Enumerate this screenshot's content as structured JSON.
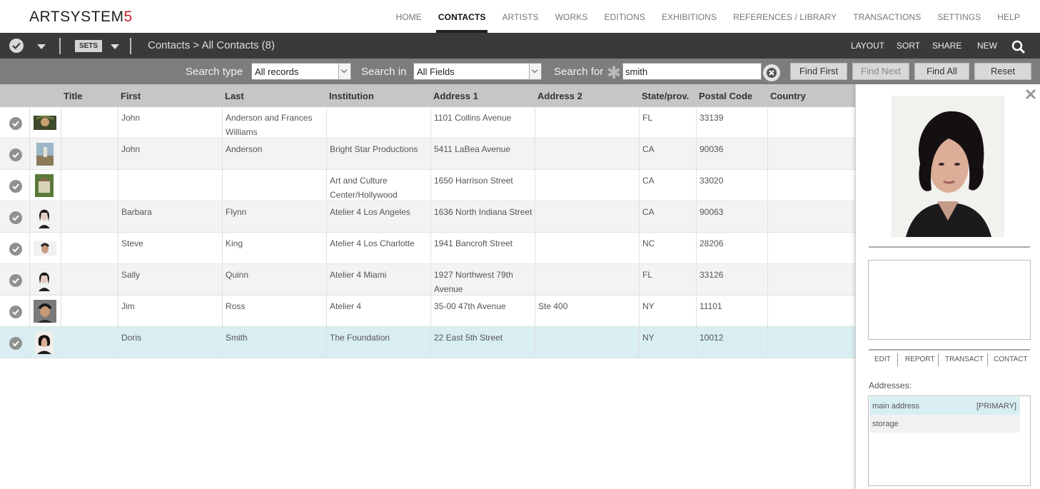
{
  "app": {
    "logo_text": "ARTSYSTEM",
    "logo_number": "5"
  },
  "nav": [
    "HOME",
    "CONTACTS",
    "ARTISTS",
    "WORKS",
    "EDITIONS",
    "EXHIBITIONS",
    "REFERENCES / LIBRARY",
    "TRANSACTIONS",
    "SETTINGS",
    "HELP"
  ],
  "nav_active": "CONTACTS",
  "toolbar": {
    "sets_label": "SETS",
    "breadcrumb": "Contacts > All Contacts (8)",
    "layout": "LAYOUT",
    "sort": "SORT",
    "share": "SHARE",
    "new": "NEW"
  },
  "search": {
    "type_label": "Search type",
    "type_value": "All records",
    "in_label": "Search in",
    "in_value": "All Fields",
    "for_label": "Search for",
    "query": "smith",
    "find_first": "Find First",
    "find_next": "Find Next",
    "find_all": "Find All",
    "reset": "Reset"
  },
  "table": {
    "columns": [
      "Title",
      "First",
      "Last",
      "Institution",
      "Address 1",
      "Address 2",
      "State/prov.",
      "Postal Code",
      "Country"
    ],
    "rows": [
      {
        "title": "",
        "first": "John",
        "last": "Anderson and Frances Williams",
        "institution": "",
        "address1": "1101 Collins Avenue",
        "address2": "",
        "state": "FL",
        "postal": "33139",
        "country": ""
      },
      {
        "title": "",
        "first": "John",
        "last": "Anderson",
        "institution": "Bright Star Productions",
        "address1": "5411 LaBea Avenue",
        "address2": "",
        "state": "CA",
        "postal": "90036",
        "country": ""
      },
      {
        "title": "",
        "first": "",
        "last": "",
        "institution": "Art and Culture Center/Hollywood",
        "address1": "1650 Harrison Street",
        "address2": "",
        "state": "CA",
        "postal": "33020",
        "country": ""
      },
      {
        "title": "",
        "first": "Barbara",
        "last": "Flynn",
        "institution": "Atelier 4 Los Angeles",
        "address1": "1636 North Indiana Street",
        "address2": "",
        "state": "CA",
        "postal": "90063",
        "country": ""
      },
      {
        "title": "",
        "first": "Steve",
        "last": "King",
        "institution": "Atelier 4 Los Charlotte",
        "address1": "1941 Bancroft Street",
        "address2": "",
        "state": "NC",
        "postal": "28206",
        "country": ""
      },
      {
        "title": "",
        "first": "Sally",
        "last": "Quinn",
        "institution": "Atelier 4 Miami",
        "address1": "1927 Northwest 79th Avenue",
        "address2": "",
        "state": "FL",
        "postal": "33126",
        "country": ""
      },
      {
        "title": "",
        "first": "Jim",
        "last": "Ross",
        "institution": "Atelier 4",
        "address1": "35-00 47th Avenue",
        "address2": "Ste 400",
        "state": "NY",
        "postal": "11101",
        "country": ""
      },
      {
        "title": "",
        "first": "Doris",
        "last": "Smith",
        "institution": "The Foundation",
        "address1": "22 East 5th Street",
        "address2": "",
        "state": "NY",
        "postal": "10012",
        "country": ""
      }
    ],
    "selected_row": 7
  },
  "panel": {
    "actions": [
      "EDIT",
      "REPORT",
      "TRANSACT",
      "CONTACT"
    ],
    "addresses_label": "Addresses:",
    "addresses": [
      {
        "name": "main address",
        "tag": "[PRIMARY]"
      },
      {
        "name": "storage",
        "tag": ""
      }
    ]
  },
  "colors": {
    "accent": "#c8202a",
    "toolbar_bg": "#3a3a3a",
    "searchbar_bg": "#7d7d7d",
    "selected_row": "#d9eef2"
  }
}
